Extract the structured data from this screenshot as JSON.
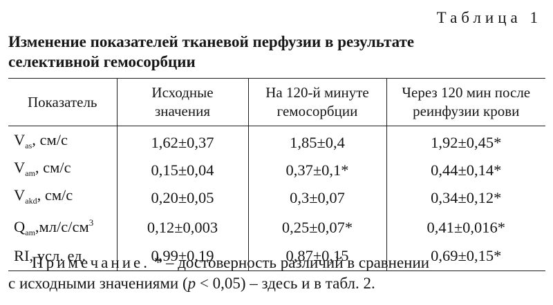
{
  "table_label": "Таблица 1",
  "caption": {
    "line1": "Изменение показателей тканевой перфузии в результате",
    "line2": "селективной гемосорбции"
  },
  "header": {
    "col1": "Показатель",
    "col2_line1": "Исходные",
    "col2_line2": "значения",
    "col3_line1": "На 120-й минуте",
    "col3_line2": "гемосорбции",
    "col4_line1": "Через 120 мин после",
    "col4_line2": "реинфузии крови"
  },
  "rows": [
    {
      "p_main": "V",
      "p_sub": "as",
      "p_unit": ", см/с",
      "p_sup": "",
      "p_tail": "",
      "baseline": "1,62±0,37",
      "minute120": "1,85±0,4",
      "after120": "1,92±0,45*"
    },
    {
      "p_main": "V",
      "p_sub": "am",
      "p_unit": ", см/с",
      "p_sup": "",
      "p_tail": "",
      "baseline": "0,15±0,04",
      "minute120": "0,37±0,1*",
      "after120": "0,44±0,14*"
    },
    {
      "p_main": "V",
      "p_sub": "akd",
      "p_unit": ", см/с",
      "p_sup": "",
      "p_tail": "",
      "baseline": "0,20±0,05",
      "minute120": "0,3±0,07",
      "after120": "0,34±0,12*"
    },
    {
      "p_main": "Q",
      "p_sub": "am",
      "p_unit": ",мл/с/см",
      "p_sup": "3",
      "p_tail": "",
      "baseline": "0,12±0,003",
      "minute120": "0,25±0,07*",
      "after120": "0,41±0,016*"
    },
    {
      "p_main": "RI, усл. ед.",
      "p_sub": "",
      "p_unit": "",
      "p_sup": "",
      "p_tail": "",
      "baseline": "0,99±0,19",
      "minute120": "0,87±0,15",
      "after120": "0,69±0,15*"
    }
  ],
  "note": {
    "head": "Примечание.",
    "text1": " * – достоверность различий в сравнении",
    "text2a": "с исходными значениями (",
    "p_letter": "p",
    "text2b": " < 0,05) – здесь и в табл. 2."
  }
}
